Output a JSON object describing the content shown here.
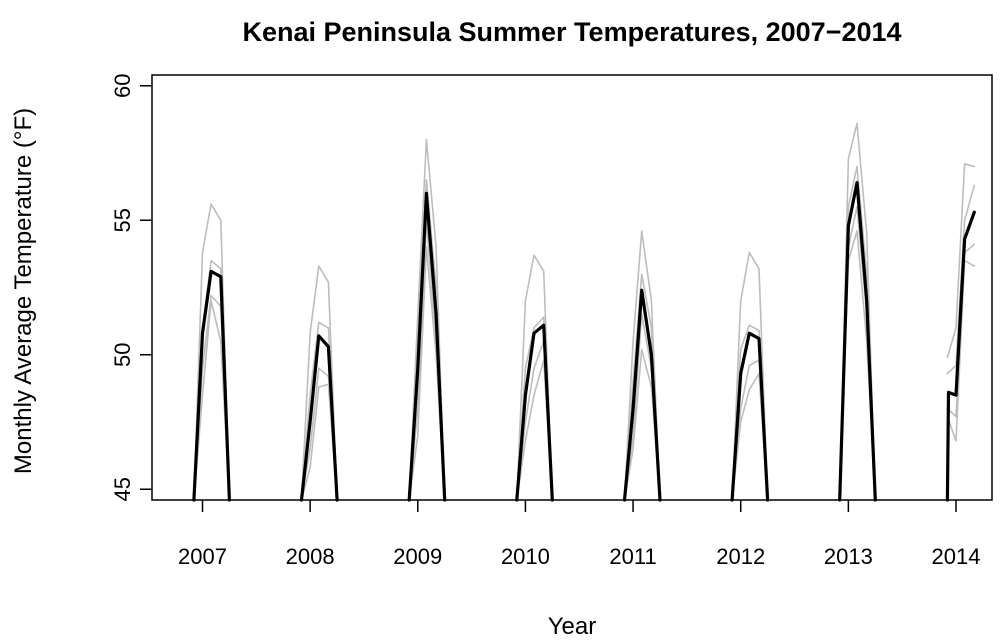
{
  "chart_data": {
    "type": "line",
    "title": "Kenai Peninsula Summer Temperatures, 2007−2014",
    "xlabel": "Year",
    "ylabel": "Monthly Average Temperature (°F)",
    "ylim": [
      44.6,
      60.4
    ],
    "y_ticks": [
      "45",
      "50",
      "55",
      "60"
    ],
    "x_ticks": [
      "2007",
      "2008",
      "2009",
      "2010",
      "2011",
      "2012",
      "2013",
      "2014"
    ],
    "series_colors": {
      "average": "#000000",
      "stations": "#bdbdbd"
    },
    "series": [
      {
        "role": "average",
        "values": [
          [
            [
              2006.92,
              44.6
            ],
            [
              2007.0,
              50.8
            ],
            [
              2007.08,
              53.1
            ],
            [
              2007.17,
              52.9
            ],
            [
              2007.25,
              44.6
            ]
          ],
          [
            [
              2007.92,
              44.6
            ],
            [
              2008.0,
              47.5
            ],
            [
              2008.08,
              50.7
            ],
            [
              2008.17,
              50.3
            ],
            [
              2008.25,
              44.6
            ]
          ],
          [
            [
              2008.92,
              44.6
            ],
            [
              2009.0,
              49.5
            ],
            [
              2009.08,
              56.0
            ],
            [
              2009.17,
              51.5
            ],
            [
              2009.25,
              44.6
            ]
          ],
          [
            [
              2009.92,
              44.6
            ],
            [
              2010.0,
              48.5
            ],
            [
              2010.08,
              50.8
            ],
            [
              2010.17,
              51.1
            ],
            [
              2010.25,
              44.6
            ]
          ],
          [
            [
              2010.92,
              44.6
            ],
            [
              2011.0,
              48.0
            ],
            [
              2011.08,
              52.4
            ],
            [
              2011.17,
              50.0
            ],
            [
              2011.25,
              44.6
            ]
          ],
          [
            [
              2011.92,
              44.6
            ],
            [
              2012.0,
              49.3
            ],
            [
              2012.08,
              50.8
            ],
            [
              2012.17,
              50.6
            ],
            [
              2012.25,
              44.6
            ]
          ],
          [
            [
              2012.92,
              44.6
            ],
            [
              2013.0,
              54.8
            ],
            [
              2013.08,
              56.4
            ],
            [
              2013.17,
              52.0
            ],
            [
              2013.25,
              44.6
            ]
          ],
          [
            [
              2013.92,
              44.6
            ],
            [
              2013.93,
              48.6
            ],
            [
              2014.0,
              48.5
            ],
            [
              2014.08,
              54.3
            ],
            [
              2014.17,
              55.3
            ]
          ]
        ]
      },
      {
        "role": "station",
        "values": [
          [
            [
              2006.92,
              44.6
            ],
            [
              2007.0,
              53.8
            ],
            [
              2007.08,
              55.6
            ],
            [
              2007.17,
              55.0
            ],
            [
              2007.25,
              44.6
            ]
          ],
          [
            [
              2007.92,
              44.6
            ],
            [
              2008.0,
              50.8
            ],
            [
              2008.08,
              53.3
            ],
            [
              2008.17,
              52.7
            ],
            [
              2008.25,
              44.6
            ]
          ],
          [
            [
              2008.92,
              44.6
            ],
            [
              2009.0,
              51.5
            ],
            [
              2009.08,
              58.0
            ],
            [
              2009.17,
              54.0
            ],
            [
              2009.25,
              44.6
            ]
          ],
          [
            [
              2009.92,
              44.6
            ],
            [
              2010.0,
              52.0
            ],
            [
              2010.08,
              53.7
            ],
            [
              2010.17,
              53.1
            ],
            [
              2010.25,
              44.6
            ]
          ],
          [
            [
              2010.92,
              44.6
            ],
            [
              2011.0,
              50.5
            ],
            [
              2011.08,
              54.6
            ],
            [
              2011.17,
              52.0
            ],
            [
              2011.25,
              44.6
            ]
          ],
          [
            [
              2011.92,
              44.6
            ],
            [
              2012.0,
              52.0
            ],
            [
              2012.08,
              53.8
            ],
            [
              2012.17,
              53.2
            ],
            [
              2012.25,
              44.6
            ]
          ],
          [
            [
              2012.92,
              44.6
            ],
            [
              2013.0,
              57.3
            ],
            [
              2013.08,
              58.6
            ],
            [
              2013.17,
              54.5
            ],
            [
              2013.25,
              44.6
            ]
          ],
          [
            [
              2013.92,
              49.9
            ],
            [
              2014.0,
              51.0
            ],
            [
              2014.08,
              57.1
            ],
            [
              2014.17,
              57.0
            ]
          ]
        ]
      },
      {
        "role": "station",
        "values": [
          [
            [
              2006.92,
              44.6
            ],
            [
              2007.0,
              51.0
            ],
            [
              2007.08,
              53.5
            ],
            [
              2007.17,
              53.2
            ],
            [
              2007.25,
              44.6
            ]
          ],
          [
            [
              2007.92,
              44.6
            ],
            [
              2008.0,
              48.5
            ],
            [
              2008.08,
              51.2
            ],
            [
              2008.17,
              51.0
            ],
            [
              2008.25,
              44.6
            ]
          ],
          [
            [
              2008.92,
              44.6
            ],
            [
              2009.0,
              50.5
            ],
            [
              2009.08,
              56.5
            ],
            [
              2009.17,
              52.5
            ],
            [
              2009.25,
              44.6
            ]
          ],
          [
            [
              2009.92,
              44.6
            ],
            [
              2010.0,
              49.5
            ],
            [
              2010.08,
              51.0
            ],
            [
              2010.17,
              51.4
            ],
            [
              2010.25,
              44.6
            ]
          ],
          [
            [
              2010.92,
              44.6
            ],
            [
              2011.0,
              49.0
            ],
            [
              2011.08,
              53.0
            ],
            [
              2011.17,
              51.0
            ],
            [
              2011.25,
              44.6
            ]
          ],
          [
            [
              2011.92,
              44.6
            ],
            [
              2012.0,
              50.2
            ],
            [
              2012.08,
              51.1
            ],
            [
              2012.17,
              50.9
            ],
            [
              2012.25,
              44.6
            ]
          ],
          [
            [
              2012.92,
              44.6
            ],
            [
              2013.0,
              55.5
            ],
            [
              2013.08,
              57.0
            ],
            [
              2013.17,
              53.0
            ],
            [
              2013.25,
              44.6
            ]
          ],
          [
            [
              2013.92,
              49.3
            ],
            [
              2014.0,
              49.6
            ],
            [
              2014.08,
              55.0
            ],
            [
              2014.17,
              56.3
            ]
          ]
        ]
      },
      {
        "role": "station",
        "values": [
          [
            [
              2006.92,
              44.6
            ],
            [
              2007.0,
              49.5
            ],
            [
              2007.08,
              52.2
            ],
            [
              2007.17,
              51.8
            ],
            [
              2007.25,
              44.6
            ]
          ],
          [
            [
              2007.92,
              44.6
            ],
            [
              2008.0,
              46.5
            ],
            [
              2008.08,
              49.5
            ],
            [
              2008.17,
              49.2
            ],
            [
              2008.25,
              44.6
            ]
          ],
          [
            [
              2008.92,
              44.6
            ],
            [
              2009.0,
              48.0
            ],
            [
              2009.08,
              55.0
            ],
            [
              2009.17,
              50.5
            ],
            [
              2009.25,
              44.6
            ]
          ],
          [
            [
              2009.92,
              44.6
            ],
            [
              2010.0,
              47.5
            ],
            [
              2010.08,
              49.5
            ],
            [
              2010.17,
              50.5
            ],
            [
              2010.25,
              44.6
            ]
          ],
          [
            [
              2010.92,
              44.6
            ],
            [
              2011.0,
              47.0
            ],
            [
              2011.08,
              51.5
            ],
            [
              2011.17,
              49.5
            ],
            [
              2011.25,
              44.6
            ]
          ],
          [
            [
              2011.92,
              44.6
            ],
            [
              2012.0,
              48.0
            ],
            [
              2012.08,
              49.6
            ],
            [
              2012.17,
              49.8
            ],
            [
              2012.25,
              44.6
            ]
          ],
          [
            [
              2012.92,
              44.6
            ],
            [
              2013.0,
              54.0
            ],
            [
              2013.08,
              55.5
            ],
            [
              2013.17,
              51.5
            ],
            [
              2013.25,
              44.6
            ]
          ],
          [
            [
              2013.92,
              48.0
            ],
            [
              2014.0,
              47.7
            ],
            [
              2014.08,
              53.8
            ],
            [
              2014.17,
              54.1
            ]
          ]
        ]
      },
      {
        "role": "station",
        "values": [
          [
            [
              2006.92,
              44.6
            ],
            [
              2007.0,
              48.5
            ],
            [
              2007.08,
              52.0
            ],
            [
              2007.17,
              50.5
            ],
            [
              2007.25,
              44.6
            ]
          ],
          [
            [
              2007.92,
              44.6
            ],
            [
              2008.0,
              45.8
            ],
            [
              2008.08,
              48.8
            ],
            [
              2008.17,
              48.9
            ],
            [
              2008.25,
              44.6
            ]
          ],
          [
            [
              2008.92,
              44.6
            ],
            [
              2009.0,
              47.0
            ],
            [
              2009.08,
              54.0
            ],
            [
              2009.17,
              50.0
            ],
            [
              2009.25,
              44.6
            ]
          ],
          [
            [
              2009.92,
              44.6
            ],
            [
              2010.0,
              46.8
            ],
            [
              2010.08,
              48.5
            ],
            [
              2010.17,
              49.8
            ],
            [
              2010.25,
              44.6
            ]
          ],
          [
            [
              2010.92,
              44.6
            ],
            [
              2011.0,
              46.5
            ],
            [
              2011.08,
              50.2
            ],
            [
              2011.17,
              48.8
            ],
            [
              2011.25,
              44.6
            ]
          ],
          [
            [
              2011.92,
              44.6
            ],
            [
              2012.0,
              47.5
            ],
            [
              2012.08,
              48.7
            ],
            [
              2012.17,
              49.3
            ],
            [
              2012.25,
              44.6
            ]
          ],
          [
            [
              2012.92,
              44.6
            ],
            [
              2013.0,
              53.5
            ],
            [
              2013.08,
              54.6
            ],
            [
              2013.17,
              50.5
            ],
            [
              2013.25,
              44.6
            ]
          ],
          [
            [
              2013.92,
              47.7
            ],
            [
              2014.0,
              46.8
            ],
            [
              2014.08,
              53.5
            ],
            [
              2014.17,
              53.3
            ]
          ]
        ]
      }
    ]
  }
}
